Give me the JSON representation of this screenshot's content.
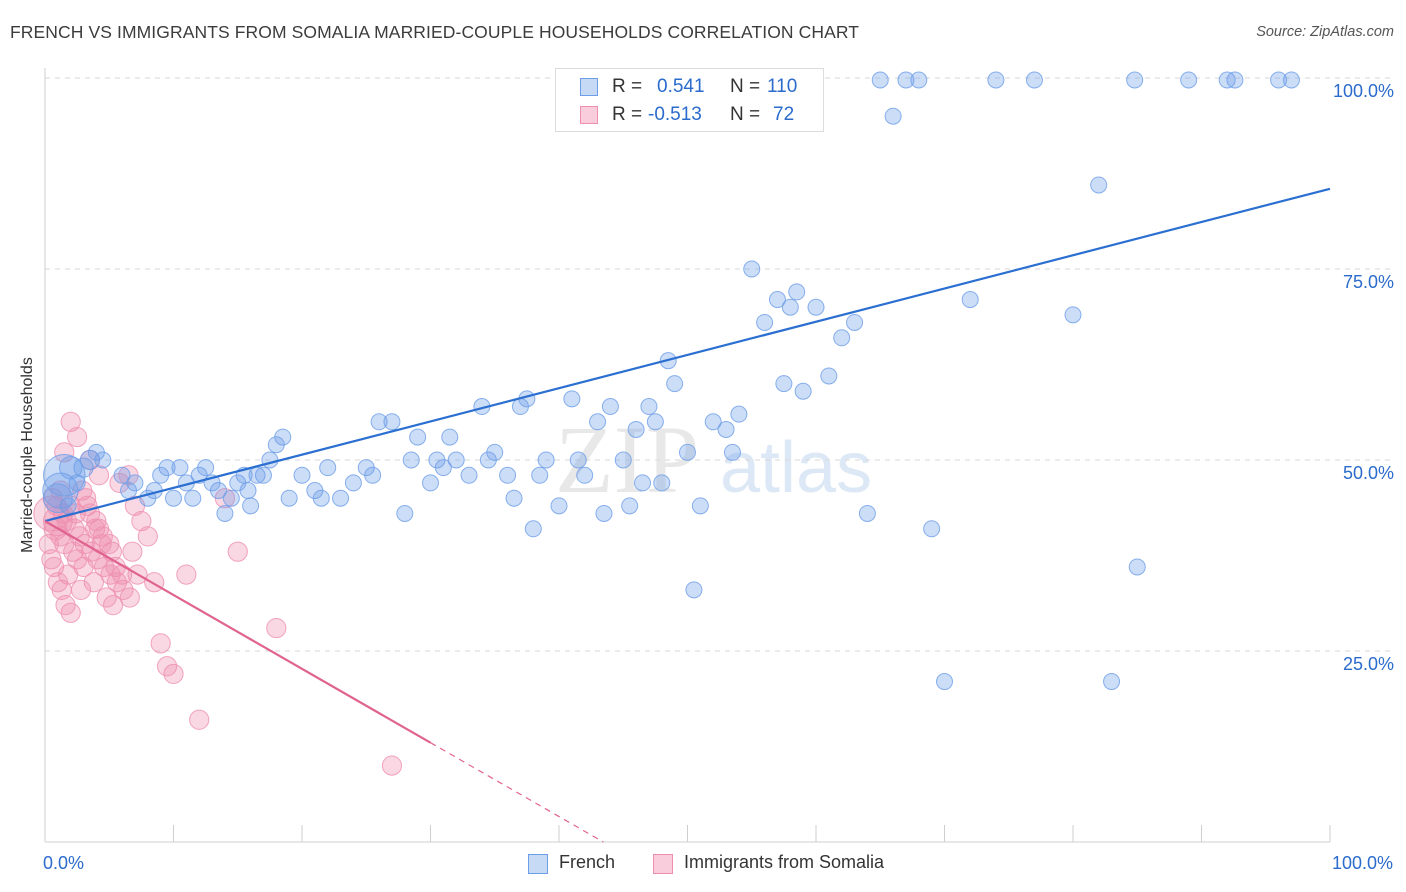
{
  "title": "FRENCH VS IMMIGRANTS FROM SOMALIA MARRIED-COUPLE HOUSEHOLDS CORRELATION CHART",
  "source": "Source: ZipAtlas.com",
  "watermark": {
    "zip": "ZIP",
    "atlas": "atlas"
  },
  "colors": {
    "french": "#6d9ee8",
    "french_line": "#2b6fd1",
    "somalia": "#ef8fb0",
    "somalia_line": "#e0638f",
    "value_text": "#2a6bcc",
    "grid": "#d7d7d7"
  },
  "stats": {
    "french": {
      "r_label": "R =",
      "r_value": "0.541",
      "n_label": "N =",
      "n_value": "110"
    },
    "somalia": {
      "r_label": "R =",
      "r_value": "-0.513",
      "n_label": "N =",
      "n_value": "72"
    }
  },
  "chart_data": {
    "type": "scatter",
    "title": "FRENCH VS IMMIGRANTS FROM SOMALIA MARRIED-COUPLE HOUSEHOLDS CORRELATION CHART",
    "xlabel": "",
    "ylabel": "Married-couple Households",
    "xlim": [
      0,
      100
    ],
    "ylim": [
      0,
      100
    ],
    "x_tick_labels": [
      "0.0%",
      "100.0%"
    ],
    "y_tick_labels": [
      "25.0%",
      "50.0%",
      "75.0%",
      "100.0%"
    ],
    "y_ticks": [
      25,
      50,
      75,
      100
    ],
    "grid": true,
    "legend": [
      "French",
      "Immigrants from Somalia"
    ],
    "series": [
      {
        "name": "French",
        "trend": {
          "x": [
            0,
            100
          ],
          "y": [
            42,
            85.5
          ]
        },
        "points": [
          [
            1.5,
            48,
            12
          ],
          [
            1.2,
            46,
            10
          ],
          [
            1,
            45,
            8
          ],
          [
            2,
            49,
            6
          ],
          [
            3,
            49,
            5
          ],
          [
            3.5,
            50,
            5
          ],
          [
            4,
            51,
            4
          ],
          [
            4.5,
            50,
            4
          ],
          [
            2.5,
            47,
            4
          ],
          [
            1.8,
            44,
            4
          ],
          [
            6,
            48,
            4
          ],
          [
            6.5,
            46,
            4
          ],
          [
            7,
            47,
            4
          ],
          [
            8,
            45,
            4
          ],
          [
            8.5,
            46,
            4
          ],
          [
            9,
            48,
            4
          ],
          [
            9.5,
            49,
            4
          ],
          [
            10,
            45,
            4
          ],
          [
            10.5,
            49,
            4
          ],
          [
            11,
            47,
            4
          ],
          [
            11.5,
            45,
            4
          ],
          [
            12,
            48,
            4
          ],
          [
            12.5,
            49,
            4
          ],
          [
            13,
            47,
            4
          ],
          [
            13.5,
            46,
            4
          ],
          [
            14,
            43,
            4
          ],
          [
            14.5,
            45,
            4
          ],
          [
            15,
            47,
            4
          ],
          [
            15.5,
            48,
            4
          ],
          [
            15.8,
            46,
            4
          ],
          [
            16,
            44,
            4
          ],
          [
            16.5,
            48,
            4
          ],
          [
            17,
            48,
            4
          ],
          [
            17.5,
            50,
            4
          ],
          [
            18,
            52,
            4
          ],
          [
            18.5,
            53,
            4
          ],
          [
            19,
            45,
            4
          ],
          [
            20,
            48,
            4
          ],
          [
            21,
            46,
            4
          ],
          [
            21.5,
            45,
            4
          ],
          [
            22,
            49,
            4
          ],
          [
            23,
            45,
            4
          ],
          [
            24,
            47,
            4
          ],
          [
            25,
            49,
            4
          ],
          [
            25.5,
            48,
            4
          ],
          [
            26,
            55,
            4
          ],
          [
            27,
            55,
            4
          ],
          [
            28,
            43,
            4
          ],
          [
            28.5,
            50,
            4
          ],
          [
            29,
            53,
            4
          ],
          [
            30,
            47,
            4
          ],
          [
            30.5,
            50,
            4
          ],
          [
            31,
            49,
            4
          ],
          [
            31.5,
            53,
            4
          ],
          [
            32,
            50,
            4
          ],
          [
            33,
            48,
            4
          ],
          [
            34,
            57,
            4
          ],
          [
            34.5,
            50,
            4
          ],
          [
            35,
            51,
            4
          ],
          [
            36,
            48,
            4
          ],
          [
            36.5,
            45,
            4
          ],
          [
            37,
            57,
            4
          ],
          [
            37.5,
            58,
            4
          ],
          [
            38,
            41,
            4
          ],
          [
            38.5,
            48,
            4
          ],
          [
            39,
            50,
            4
          ],
          [
            40,
            44,
            4
          ],
          [
            41,
            58,
            4
          ],
          [
            41.5,
            50,
            4
          ],
          [
            42,
            48,
            4
          ],
          [
            43,
            55,
            4
          ],
          [
            43.5,
            43,
            4
          ],
          [
            44,
            57,
            4
          ],
          [
            45,
            50,
            4
          ],
          [
            45.5,
            44,
            4
          ],
          [
            46,
            54,
            4
          ],
          [
            46.5,
            47,
            4
          ],
          [
            47,
            57,
            4
          ],
          [
            47.5,
            55,
            4
          ],
          [
            48,
            47,
            4
          ],
          [
            48.5,
            63,
            4
          ],
          [
            49,
            60,
            4
          ],
          [
            50,
            51,
            4
          ],
          [
            50.5,
            33,
            4
          ],
          [
            51,
            44,
            4
          ],
          [
            52,
            55,
            4
          ],
          [
            53,
            54,
            4
          ],
          [
            53.5,
            51,
            4
          ],
          [
            54,
            56,
            4
          ],
          [
            55,
            75,
            4
          ],
          [
            56,
            68,
            4
          ],
          [
            57,
            71,
            4
          ],
          [
            57.5,
            60,
            4
          ],
          [
            58,
            70,
            4
          ],
          [
            58.5,
            72,
            4
          ],
          [
            59,
            59,
            4
          ],
          [
            60,
            70,
            4
          ],
          [
            61,
            61,
            4
          ],
          [
            62,
            66,
            4
          ],
          [
            63,
            68,
            4
          ],
          [
            64,
            43,
            4
          ],
          [
            65,
            101,
            4
          ],
          [
            66,
            95,
            4
          ],
          [
            67,
            102,
            4
          ],
          [
            68,
            106,
            4
          ],
          [
            69,
            41,
            4
          ],
          [
            70,
            21,
            4
          ],
          [
            72,
            71,
            4
          ],
          [
            74,
            104,
            4
          ],
          [
            77,
            100,
            4
          ],
          [
            80,
            69,
            4
          ],
          [
            82,
            86,
            4
          ],
          [
            85,
            36,
            4
          ],
          [
            89,
            101,
            4
          ],
          [
            92,
            101,
            4
          ],
          [
            96,
            101,
            4
          ],
          [
            84.8,
            100,
            4
          ],
          [
            92.6,
            100,
            4
          ],
          [
            97,
            100,
            4
          ],
          [
            83,
            21,
            4
          ]
        ]
      },
      {
        "name": "Immigrants from Somalia",
        "trend": {
          "x": [
            0,
            30
          ],
          "y": [
            42,
            13
          ]
        },
        "points": [
          [
            0.5,
            43,
            10
          ],
          [
            1,
            42,
            8
          ],
          [
            0.8,
            41,
            6
          ],
          [
            1.2,
            40,
            5
          ],
          [
            1.5,
            39,
            5
          ],
          [
            2,
            44,
            5
          ],
          [
            2.2,
            38,
            5
          ],
          [
            2.5,
            37,
            5
          ],
          [
            3,
            36,
            5
          ],
          [
            1.8,
            35,
            5
          ],
          [
            3.2,
            45,
            5
          ],
          [
            3.5,
            43,
            5
          ],
          [
            4,
            42,
            5
          ],
          [
            4.2,
            41,
            5
          ],
          [
            4.5,
            40,
            5
          ],
          [
            5,
            39,
            5
          ],
          [
            5.2,
            38,
            5
          ],
          [
            5.5,
            36,
            5
          ],
          [
            6,
            35,
            5
          ],
          [
            3.8,
            34,
            5
          ],
          [
            2.8,
            33,
            5
          ],
          [
            4.8,
            32,
            5
          ],
          [
            5.3,
            31,
            5
          ],
          [
            6.5,
            48,
            5
          ],
          [
            7,
            44,
            5
          ],
          [
            7.5,
            42,
            5
          ],
          [
            8,
            40,
            5
          ],
          [
            6.8,
            38,
            5
          ],
          [
            7.2,
            35,
            5
          ],
          [
            2,
            55,
            5
          ],
          [
            2.5,
            53,
            5
          ],
          [
            1.5,
            51,
            5
          ],
          [
            3.5,
            50,
            5
          ],
          [
            4.2,
            48,
            5
          ],
          [
            5.8,
            47,
            5
          ],
          [
            1.2,
            46,
            5
          ],
          [
            0.6,
            45,
            5
          ],
          [
            0.9,
            44,
            5
          ],
          [
            1.4,
            43,
            5
          ],
          [
            1.7,
            42,
            5
          ],
          [
            2.3,
            41,
            5
          ],
          [
            2.7,
            40,
            5
          ],
          [
            3.1,
            39,
            5
          ],
          [
            3.6,
            38,
            5
          ],
          [
            4.1,
            37,
            5
          ],
          [
            4.6,
            36,
            5
          ],
          [
            5.1,
            35,
            5
          ],
          [
            5.6,
            34,
            5
          ],
          [
            6.1,
            33,
            5
          ],
          [
            6.6,
            32,
            5
          ],
          [
            8.5,
            34,
            5
          ],
          [
            9,
            26,
            5
          ],
          [
            9.5,
            23,
            5
          ],
          [
            10,
            22,
            5
          ],
          [
            11,
            35,
            5
          ],
          [
            12,
            16,
            5
          ],
          [
            14,
            45,
            5
          ],
          [
            15,
            38,
            5
          ],
          [
            18,
            28,
            5
          ],
          [
            27,
            10,
            5
          ],
          [
            0.3,
            39,
            5
          ],
          [
            0.5,
            37,
            5
          ],
          [
            0.7,
            36,
            5
          ],
          [
            1,
            34,
            5
          ],
          [
            1.3,
            33,
            5
          ],
          [
            1.6,
            31,
            5
          ],
          [
            2,
            30,
            5
          ],
          [
            2.4,
            43,
            5
          ],
          [
            2.9,
            46,
            5
          ],
          [
            3.3,
            44,
            5
          ],
          [
            3.9,
            41,
            5
          ],
          [
            4.4,
            39,
            5
          ]
        ]
      }
    ]
  }
}
